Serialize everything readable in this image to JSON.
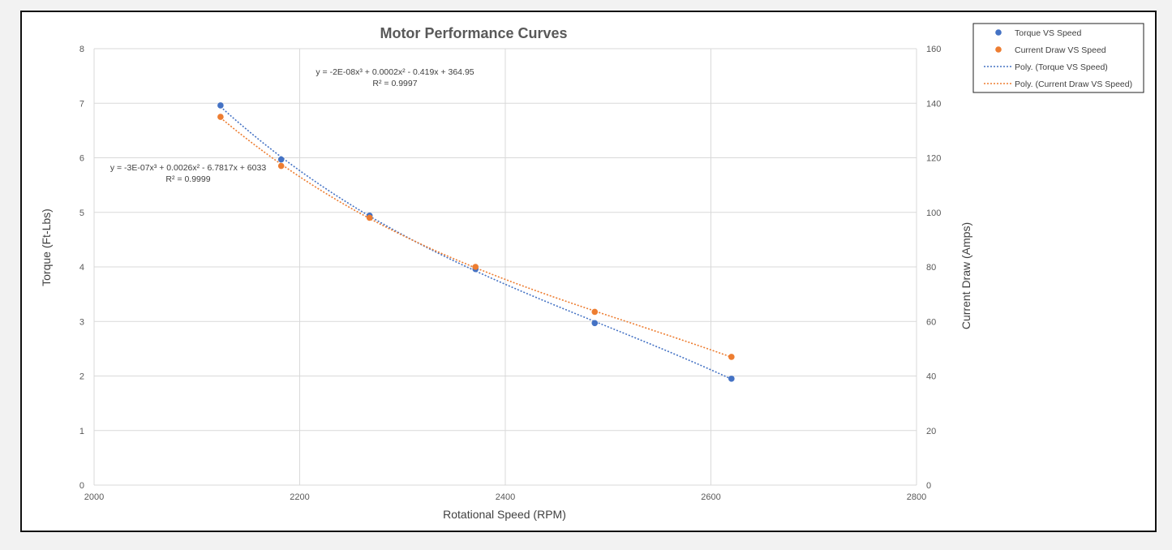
{
  "chart_data": {
    "type": "scatter",
    "title": "Motor Performance Curves",
    "xlabel": "Rotational Speed (RPM)",
    "ylabel": "Torque (Ft-Lbs)",
    "y2label": "Current Draw (Amps)",
    "xlim": [
      2000,
      2800
    ],
    "ylim": [
      0,
      8
    ],
    "y2lim": [
      0,
      160
    ],
    "xticks": [
      "2000",
      "2200",
      "2400",
      "2600",
      "2800"
    ],
    "yticks": [
      "0",
      "1",
      "2",
      "3",
      "4",
      "5",
      "6",
      "7",
      "8"
    ],
    "y2ticks": [
      "0",
      "20",
      "40",
      "60",
      "80",
      "100",
      "120",
      "140",
      "160"
    ],
    "grid": true,
    "legend_position": "top-right",
    "series": [
      {
        "name": "Torque VS Speed",
        "axis": "left",
        "color": "#4472c4",
        "x": [
          2123,
          2182,
          2268,
          2371,
          2487,
          2620
        ],
        "y": [
          6.96,
          5.97,
          4.94,
          3.96,
          2.97,
          1.95
        ]
      },
      {
        "name": "Current Draw VS Speed",
        "axis": "right",
        "color": "#ed7d31",
        "x": [
          2123,
          2182,
          2268,
          2371,
          2487,
          2620
        ],
        "y": [
          135,
          117,
          98,
          80,
          63.5,
          47
        ]
      }
    ],
    "trendlines": [
      {
        "name": "Poly. (Torque VS Speed)",
        "axis": "left",
        "color": "#4472c4",
        "coef": [
          -2e-08,
          0.0002,
          -0.419,
          364.95
        ],
        "equation": "y = -2E-08x³ + 0.0002x² - 0.419x + 364.95",
        "r2": "R² = 0.9997"
      },
      {
        "name": "Poly. (Current Draw VS Speed)",
        "axis": "right",
        "color": "#ed7d31",
        "coef": [
          -3e-07,
          0.0026,
          -6.7817,
          6033
        ],
        "equation": "y = -3E-07x³ + 0.0026x² - 6.7817x + 6033",
        "r2": "R² = 0.9999"
      }
    ],
    "legend": [
      "Torque VS Speed",
      "Current Draw VS Speed",
      "Poly. (Torque VS Speed)",
      "Poly. (Current Draw VS Speed)"
    ]
  }
}
